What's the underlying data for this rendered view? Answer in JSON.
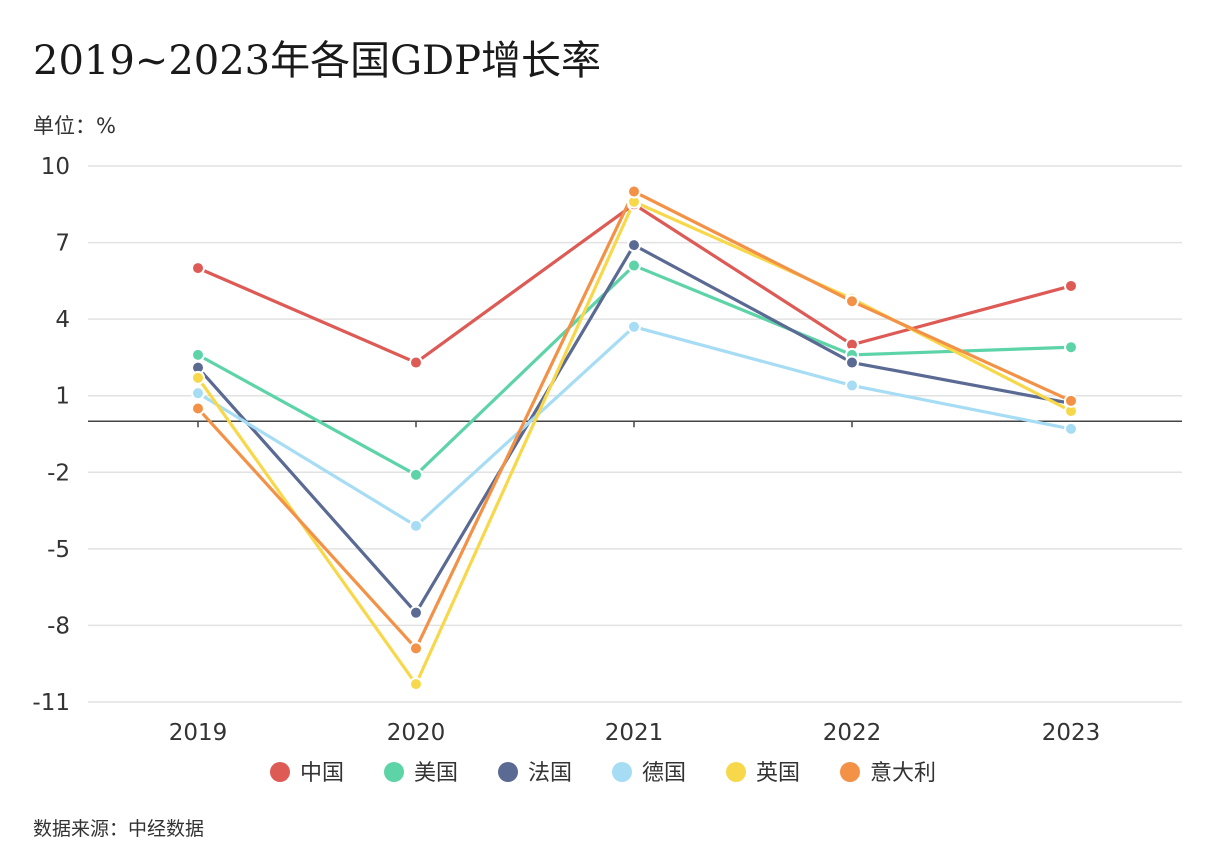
{
  "title": "2019~2023年各国GDP增长率",
  "unit_label": "单位：%",
  "source": "数据来源：中经数据",
  "chart_data": {
    "type": "line",
    "title": "2019~2023年各国GDP增长率",
    "ylabel": "%",
    "ylim": [
      -11,
      10
    ],
    "yticks": [
      10,
      7,
      4,
      1,
      -2,
      -5,
      -8,
      -11
    ],
    "categories": [
      "2019",
      "2020",
      "2021",
      "2022",
      "2023"
    ],
    "legend_position": "bottom",
    "series": [
      {
        "name": "中国",
        "color": "#DD5A55",
        "values": [
          6.0,
          2.3,
          8.5,
          3.0,
          5.3
        ]
      },
      {
        "name": "美国",
        "color": "#5DD4A8",
        "values": [
          2.6,
          -2.1,
          6.1,
          2.6,
          2.9
        ]
      },
      {
        "name": "法国",
        "color": "#5A6A93",
        "values": [
          2.1,
          -7.5,
          6.9,
          2.3,
          0.7
        ]
      },
      {
        "name": "德国",
        "color": "#A7DDF4",
        "values": [
          1.1,
          -4.1,
          3.7,
          1.4,
          -0.3
        ]
      },
      {
        "name": "英国",
        "color": "#F8D84B",
        "values": [
          1.7,
          -10.3,
          8.6,
          4.8,
          0.4
        ]
      },
      {
        "name": "意大利",
        "color": "#F39247",
        "values": [
          0.5,
          -8.9,
          9.0,
          4.7,
          0.8
        ]
      }
    ]
  }
}
